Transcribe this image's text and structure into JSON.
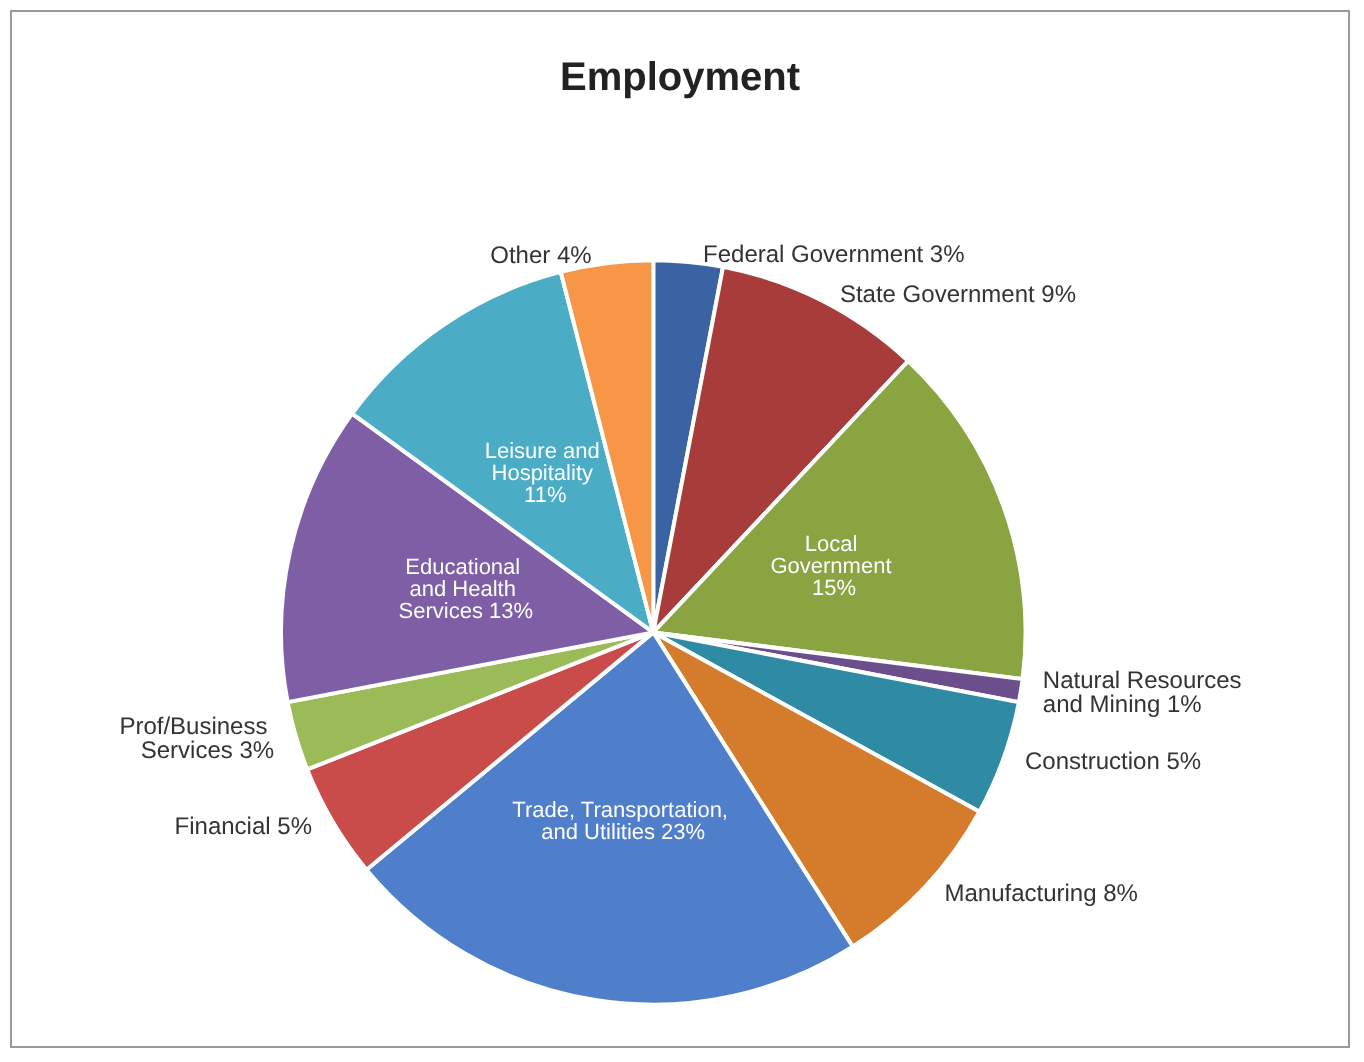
{
  "chart_data": {
    "type": "pie",
    "title": "Employment",
    "categories": [
      "Federal Government",
      "State Government",
      "Local Government",
      "Natural Resources and Mining",
      "Construction",
      "Manufacturing",
      "Trade, Transportation, and Utilities",
      "Financial",
      "Prof/Business Services",
      "Educational and Health Services",
      "Leisure and Hospitality",
      "Other"
    ],
    "values": [
      3,
      9,
      15,
      1,
      5,
      8,
      23,
      5,
      3,
      13,
      11,
      4
    ],
    "colors": [
      "#3b62a3",
      "#a83c3a",
      "#8aa441",
      "#6b4e8c",
      "#2f8ba3",
      "#d47b2c",
      "#4f7fca",
      "#c94c4a",
      "#9bbb59",
      "#7e5fa6",
      "#4bacc6",
      "#f79646"
    ],
    "value_labels": [
      "3%",
      "9%",
      "15%",
      "1%",
      "5%",
      "8%",
      "23%",
      "5%",
      "3%",
      "13%",
      "11%",
      "4%"
    ],
    "legend": false
  }
}
